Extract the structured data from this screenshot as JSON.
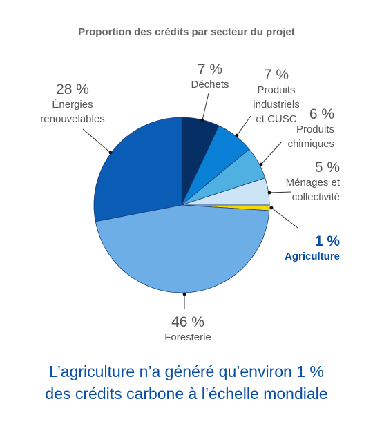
{
  "chart_data": {
    "type": "pie",
    "title": "Proportion des crédits par secteur du projet",
    "slices": [
      {
        "pct_label": "7 %",
        "value": 7,
        "name_lines": [
          "Déchets"
        ],
        "color": "#062f66"
      },
      {
        "pct_label": "7 %",
        "value": 7,
        "name_lines": [
          "Produits",
          "industriels",
          "et CUSC"
        ],
        "color": "#0a7fd6"
      },
      {
        "pct_label": "6 %",
        "value": 6,
        "name_lines": [
          "Produits",
          "chimiques"
        ],
        "color": "#4fb0e2"
      },
      {
        "pct_label": "5 %",
        "value": 5,
        "name_lines": [
          "Ménages et",
          "collectivité"
        ],
        "color": "#cde3f6"
      },
      {
        "pct_label": "1 %",
        "value": 1,
        "name_lines": [
          "Agriculture"
        ],
        "color": "#f5d800",
        "highlight": true
      },
      {
        "pct_label": "46 %",
        "value": 46,
        "name_lines": [
          "Foresterie"
        ],
        "color": "#6daee6"
      },
      {
        "pct_label": "28 %",
        "value": 28,
        "name_lines": [
          "Énergies",
          "renouvelables"
        ],
        "color": "#0a5cb5"
      }
    ],
    "colors": {
      "label": "#555555",
      "highlight": "#0a4fa3",
      "leader": "#333333"
    }
  },
  "caption": {
    "line1": "L’agriculture n’a généré qu’environ 1 %",
    "line2": "des crédits carbone à l’échelle mondiale"
  }
}
